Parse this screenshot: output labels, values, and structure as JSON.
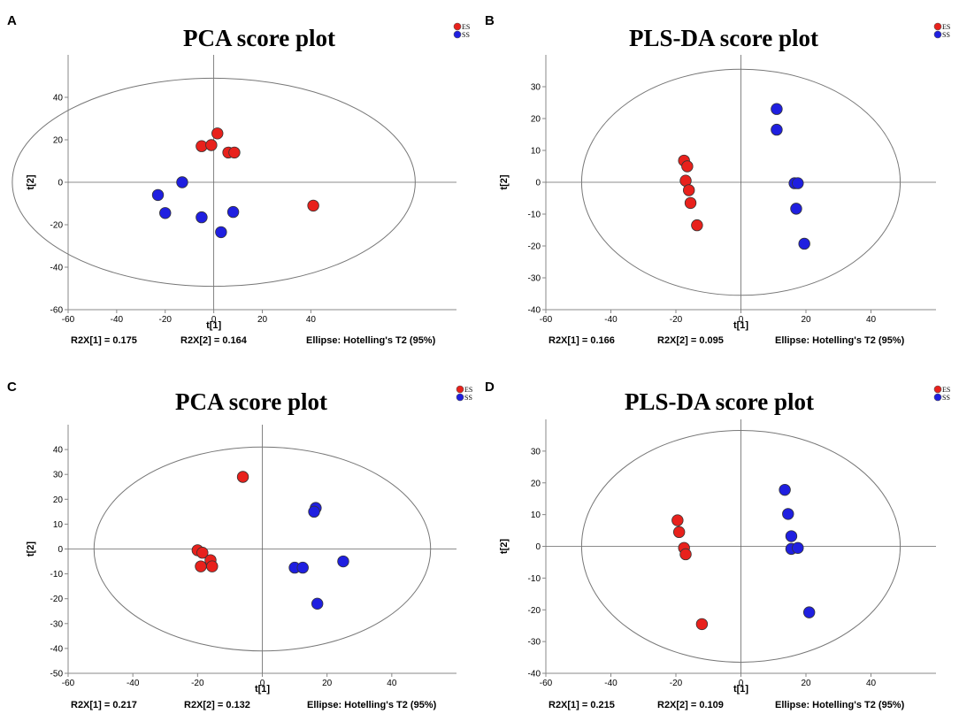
{
  "chart_data": [
    {
      "panel": "A",
      "type": "scatter",
      "title": "PCA score plot",
      "xlabel": "t[1]",
      "ylabel": "t[2]",
      "xlim": [
        -60,
        100
      ],
      "ylim": [
        -60,
        60
      ],
      "xticks": [
        -60,
        -40,
        -20,
        0,
        20,
        40
      ],
      "yticks": [
        -60,
        -40,
        -20,
        0,
        20,
        40
      ],
      "ellipse": {
        "rx": 83,
        "ry": 49
      },
      "legend": [
        {
          "name": "ES",
          "color": "#e8211c"
        },
        {
          "name": "SS",
          "color": "#1f1fe0"
        }
      ],
      "series": [
        {
          "name": "ES",
          "color": "#e8211c",
          "points": [
            [
              -5,
              17
            ],
            [
              -1,
              17.5
            ],
            [
              1.5,
              23
            ],
            [
              6,
              14
            ],
            [
              8.5,
              14
            ],
            [
              41,
              -11
            ]
          ]
        },
        {
          "name": "SS",
          "color": "#1f1fe0",
          "points": [
            [
              -23,
              -6
            ],
            [
              -20,
              -14.5
            ],
            [
              -13,
              0
            ],
            [
              -5,
              -16.5
            ],
            [
              3,
              -23.5
            ],
            [
              8,
              -14
            ]
          ]
        }
      ],
      "footer": {
        "r2x1": "R2X[1] = 0.175",
        "r2x2": "R2X[2] = 0.164",
        "ellipse_note": "Ellipse: Hotelling's T2 (95%)"
      }
    },
    {
      "panel": "B",
      "type": "scatter",
      "title": "PLS-DA score plot",
      "xlabel": "t[1]",
      "ylabel": "t[2]",
      "xlim": [
        -60,
        60
      ],
      "ylim": [
        -40,
        40
      ],
      "xticks": [
        -60,
        -40,
        -20,
        0,
        20,
        40
      ],
      "yticks": [
        -40,
        -30,
        -20,
        -10,
        0,
        10,
        20,
        30
      ],
      "ellipse": {
        "rx": 49,
        "ry": 35.5
      },
      "legend": [
        {
          "name": "ES",
          "color": "#e8211c"
        },
        {
          "name": "SS",
          "color": "#1f1fe0"
        }
      ],
      "series": [
        {
          "name": "ES",
          "color": "#e8211c",
          "points": [
            [
              -17.5,
              6.8
            ],
            [
              -16.5,
              5
            ],
            [
              -17,
              0.5
            ],
            [
              -16,
              -2.5
            ],
            [
              -15.5,
              -6.5
            ],
            [
              -13.5,
              -13.5
            ]
          ]
        },
        {
          "name": "SS",
          "color": "#1f1fe0",
          "points": [
            [
              11,
              23
            ],
            [
              11,
              16.5
            ],
            [
              16.5,
              -0.3
            ],
            [
              17.5,
              -0.3
            ],
            [
              17,
              -8.3
            ],
            [
              19.5,
              -19.3
            ]
          ]
        }
      ],
      "footer": {
        "r2x1": "R2X[1] = 0.166",
        "r2x2": "R2X[2] = 0.095",
        "ellipse_note": "Ellipse: Hotelling's T2 (95%)"
      }
    },
    {
      "panel": "C",
      "type": "scatter",
      "title": "PCA score plot",
      "xlabel": "t[1]",
      "ylabel": "t[2]",
      "xlim": [
        -60,
        60
      ],
      "ylim": [
        -50,
        50
      ],
      "xticks": [
        -60,
        -40,
        -20,
        0,
        20,
        40
      ],
      "yticks": [
        -50,
        -40,
        -30,
        -20,
        -10,
        0,
        10,
        20,
        30,
        40
      ],
      "ellipse": {
        "rx": 52,
        "ry": 41
      },
      "legend": [
        {
          "name": "ES",
          "color": "#e8211c"
        },
        {
          "name": "SS",
          "color": "#1f1fe0"
        }
      ],
      "series": [
        {
          "name": "ES",
          "color": "#e8211c",
          "points": [
            [
              -6,
              29
            ],
            [
              -20,
              -0.5
            ],
            [
              -18.5,
              -1.5
            ],
            [
              -16,
              -4.5
            ],
            [
              -19,
              -7
            ],
            [
              -15.5,
              -7
            ]
          ]
        },
        {
          "name": "SS",
          "color": "#1f1fe0",
          "points": [
            [
              16.5,
              16.5
            ],
            [
              16,
              15
            ],
            [
              10,
              -7.5
            ],
            [
              12.5,
              -7.5
            ],
            [
              25,
              -5
            ],
            [
              17,
              -22
            ]
          ]
        }
      ],
      "footer": {
        "r2x1": "R2X[1] = 0.217",
        "r2x2": "R2X[2] = 0.132",
        "ellipse_note": "Ellipse: Hotelling's T2 (95%)"
      }
    },
    {
      "panel": "D",
      "type": "scatter",
      "title": "PLS-DA score plot",
      "xlabel": "t[1]",
      "ylabel": "t[2]",
      "xlim": [
        -60,
        60
      ],
      "ylim": [
        -40,
        40
      ],
      "xticks": [
        -60,
        -40,
        -20,
        0,
        20,
        40
      ],
      "yticks": [
        -40,
        -30,
        -20,
        -10,
        0,
        10,
        20,
        30
      ],
      "ellipse": {
        "rx": 49,
        "ry": 36.5
      },
      "legend": [
        {
          "name": "ES",
          "color": "#e8211c"
        },
        {
          "name": "SS",
          "color": "#1f1fe0"
        }
      ],
      "series": [
        {
          "name": "ES",
          "color": "#e8211c",
          "points": [
            [
              -19.5,
              8.2
            ],
            [
              -19,
              4.5
            ],
            [
              -17.5,
              -0.5
            ],
            [
              -17,
              -2.5
            ],
            [
              -12,
              -24.5
            ]
          ]
        },
        {
          "name": "SS",
          "color": "#1f1fe0",
          "points": [
            [
              13.5,
              17.8
            ],
            [
              14.5,
              10.2
            ],
            [
              15.5,
              3.2
            ],
            [
              15.5,
              -0.8
            ],
            [
              17.5,
              -0.5
            ],
            [
              21,
              -20.8
            ]
          ]
        }
      ],
      "footer": {
        "r2x1": "R2X[1] = 0.215",
        "r2x2": "R2X[2] = 0.109",
        "ellipse_note": "Ellipse: Hotelling's T2 (95%)"
      }
    }
  ]
}
